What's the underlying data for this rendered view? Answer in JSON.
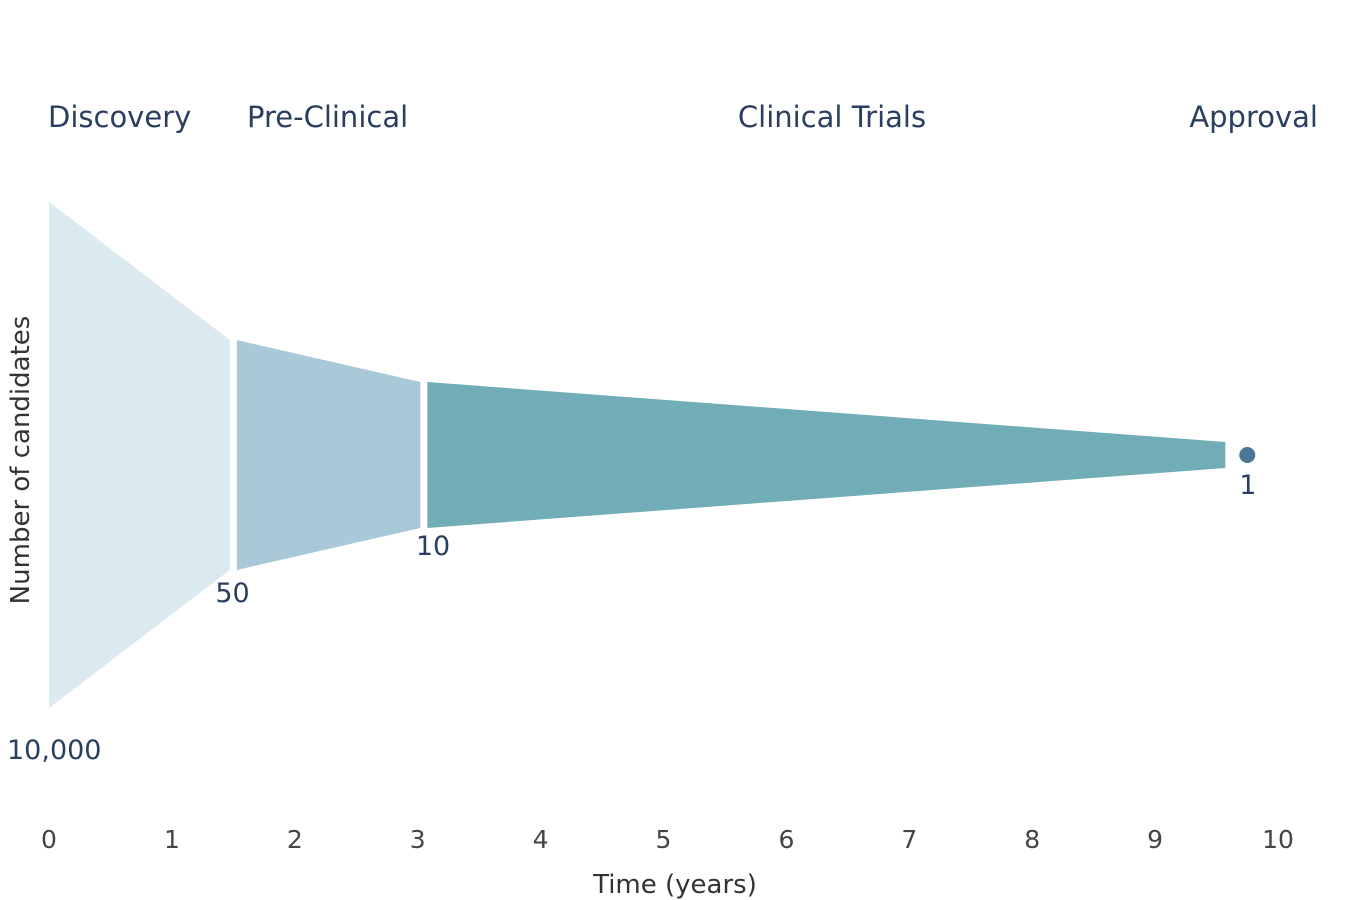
{
  "chart_data": {
    "type": "area",
    "xlabel": "Time (years)",
    "ylabel": "Number of candidates",
    "xlim": [
      0,
      10
    ],
    "x_ticks": [
      "0",
      "1",
      "2",
      "3",
      "4",
      "5",
      "6",
      "7",
      "8",
      "9",
      "10"
    ],
    "grid": false,
    "legend": "none",
    "stages": [
      {
        "name": "Discovery",
        "start": 0,
        "end": 1.5,
        "color": "#dbe9f1"
      },
      {
        "name": "Pre-Clinical",
        "start": 1.5,
        "end": 3.05,
        "color": "#a9c9d9"
      },
      {
        "name": "Clinical Trials",
        "start": 3.05,
        "end": 9.6,
        "color": "#71adb7"
      },
      {
        "name": "Approval",
        "start": 9.6,
        "end": 10,
        "color": "#4c7695"
      }
    ],
    "points": [
      {
        "x": 0,
        "label": "10,000"
      },
      {
        "x": 1.5,
        "label": "50"
      },
      {
        "x": 3.05,
        "label": "10"
      },
      {
        "x": 9.75,
        "label": "1"
      }
    ],
    "values": [
      10000,
      50,
      10,
      1
    ]
  }
}
